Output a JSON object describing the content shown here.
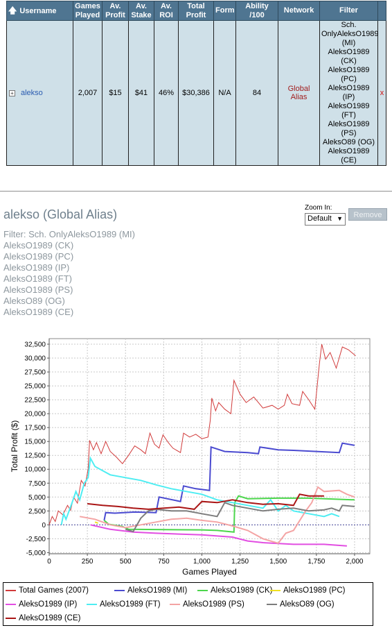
{
  "table": {
    "headers": {
      "username": "Username",
      "games_played": "Games Played",
      "av_profit": "Av. Profit",
      "av_stake": "Av. Stake",
      "av_roi": "Av. ROI",
      "total_profit": "Total Profit",
      "form": "Form",
      "ability": "Ability /100",
      "network": "Network",
      "filter": "Filter"
    },
    "sort_arrow": "🡅",
    "row": {
      "expand": "+",
      "username": "alekso",
      "games_played": "2,007",
      "av_profit": "$15",
      "av_stake": "$41",
      "av_roi": "46%",
      "total_profit": "$30,386",
      "form": "N/A",
      "ability": "84",
      "network": "Global Alias",
      "filter_lines": [
        "Sch.",
        "OnlyAleksO1989",
        "(MI)",
        "AleksO1989",
        "(CK)",
        "AleksO1989",
        "(PC)",
        "AleksO1989 (IP)",
        "AleksO1989",
        "(FT)",
        "AleksO1989",
        "(PS)",
        "AleksO89 (OG)",
        "AleksO1989",
        "(CE)"
      ],
      "remove": "x"
    }
  },
  "profile": {
    "title": "alekso (Global Alias)",
    "filter_lines": [
      "Filter: Sch. OnlyAleksO1989 (MI)",
      "AleksO1989 (CK)",
      "AleksO1989 (PC)",
      "AleksO1989 (IP)",
      "AleksO1989 (FT)",
      "AleksO1989 (PS)",
      "AleksO89 (OG)",
      "AleksO1989 (CE)"
    ],
    "zoom_label": "Zoom In:",
    "zoom_value": "Default",
    "remove_label": "Remove"
  },
  "chart_data": {
    "type": "line",
    "xlabel": "Games Played",
    "ylabel": "Total Profit ($)",
    "xlim": [
      0,
      2100
    ],
    "ylim": [
      -5200,
      33500
    ],
    "xticks": [
      0,
      250,
      500,
      750,
      1000,
      1250,
      1500,
      1750,
      2000
    ],
    "xtick_labels": [
      "0",
      "250",
      "500",
      "750",
      "1,000",
      "1,250",
      "1,500",
      "1,750",
      "2,000"
    ],
    "yticks": [
      -5000,
      -2500,
      0,
      2500,
      5000,
      7500,
      10000,
      12500,
      15000,
      17500,
      20000,
      22500,
      25000,
      27500,
      30000,
      32500
    ],
    "ytick_labels": [
      "-5,000",
      "-2,500",
      "0",
      "2,500",
      "5,000",
      "7,500",
      "10,000",
      "12,500",
      "15,000",
      "17,500",
      "20,000",
      "22,500",
      "25,000",
      "27,500",
      "30,000",
      "32,500"
    ],
    "grid": true,
    "legend_position": "bottom",
    "series": [
      {
        "name": "Total Games (2007)",
        "color": "#d13a3a",
        "points": [
          [
            0,
            0
          ],
          [
            20,
            1500
          ],
          [
            40,
            600
          ],
          [
            60,
            2500
          ],
          [
            90,
            1800
          ],
          [
            120,
            3500
          ],
          [
            140,
            2600
          ],
          [
            160,
            5000
          ],
          [
            185,
            3900
          ],
          [
            210,
            8000
          ],
          [
            235,
            7000
          ],
          [
            255,
            10000
          ],
          [
            265,
            15200
          ],
          [
            290,
            13500
          ],
          [
            310,
            14800
          ],
          [
            340,
            12800
          ],
          [
            370,
            15000
          ],
          [
            400,
            13200
          ],
          [
            440,
            12200
          ],
          [
            480,
            11000
          ],
          [
            520,
            12500
          ],
          [
            560,
            14200
          ],
          [
            600,
            13500
          ],
          [
            630,
            12800
          ],
          [
            660,
            16500
          ],
          [
            690,
            14500
          ],
          [
            720,
            13800
          ],
          [
            745,
            16200
          ],
          [
            780,
            14800
          ],
          [
            810,
            13800
          ],
          [
            860,
            13000
          ],
          [
            880,
            16500
          ],
          [
            920,
            15800
          ],
          [
            960,
            16300
          ],
          [
            1000,
            15500
          ],
          [
            1040,
            15800
          ],
          [
            1055,
            18800
          ],
          [
            1065,
            22800
          ],
          [
            1090,
            20500
          ],
          [
            1110,
            22000
          ],
          [
            1150,
            20800
          ],
          [
            1190,
            20000
          ],
          [
            1210,
            26000
          ],
          [
            1250,
            23500
          ],
          [
            1290,
            22000
          ],
          [
            1340,
            23000
          ],
          [
            1400,
            21000
          ],
          [
            1460,
            21500
          ],
          [
            1500,
            20800
          ],
          [
            1540,
            21500
          ],
          [
            1560,
            23500
          ],
          [
            1590,
            21800
          ],
          [
            1640,
            21500
          ],
          [
            1660,
            24000
          ],
          [
            1700,
            22500
          ],
          [
            1740,
            20800
          ],
          [
            1770,
            29000
          ],
          [
            1785,
            32500
          ],
          [
            1810,
            29800
          ],
          [
            1840,
            31000
          ],
          [
            1880,
            28200
          ],
          [
            1920,
            32000
          ],
          [
            1960,
            31500
          ],
          [
            2007,
            30400
          ]
        ]
      },
      {
        "name": "AleksO1989 (MI)",
        "color": "#4a4ad0",
        "points": [
          [
            360,
            800
          ],
          [
            370,
            2200
          ],
          [
            430,
            2100
          ],
          [
            560,
            2300
          ],
          [
            700,
            2200
          ],
          [
            720,
            5000
          ],
          [
            860,
            4200
          ],
          [
            880,
            7000
          ],
          [
            960,
            6500
          ],
          [
            1050,
            6200
          ],
          [
            1060,
            14000
          ],
          [
            1150,
            13200
          ],
          [
            1300,
            13000
          ],
          [
            1370,
            12800
          ],
          [
            1380,
            14000
          ],
          [
            1500,
            13500
          ],
          [
            1600,
            13400
          ],
          [
            1900,
            13000
          ],
          [
            1920,
            14700
          ],
          [
            2000,
            14300
          ]
        ]
      },
      {
        "name": "AleksO1989 (CK)",
        "color": "#4cd64c",
        "points": [
          [
            360,
            800
          ],
          [
            390,
            100
          ],
          [
            480,
            -300
          ],
          [
            520,
            -800
          ],
          [
            1000,
            -900
          ],
          [
            1100,
            -1000
          ],
          [
            1210,
            -1300
          ],
          [
            1215,
            4000
          ],
          [
            1240,
            5200
          ],
          [
            1300,
            4700
          ],
          [
            1500,
            4800
          ],
          [
            1700,
            4800
          ],
          [
            2000,
            4500
          ]
        ]
      },
      {
        "name": "AleksO1989 (PC)",
        "color": "#f0e020",
        "points": [
          [
            300,
            500
          ],
          [
            320,
            300
          ]
        ]
      },
      {
        "name": "AleksO1989 (IP)",
        "color": "#e24de2",
        "points": [
          [
            270,
            0
          ],
          [
            400,
            -800
          ],
          [
            550,
            -1300
          ],
          [
            700,
            -1500
          ],
          [
            1000,
            -1800
          ],
          [
            1200,
            -2200
          ],
          [
            1300,
            -2900
          ],
          [
            1400,
            -3200
          ],
          [
            1600,
            -3500
          ],
          [
            1800,
            -3500
          ],
          [
            1950,
            -3800
          ]
        ]
      },
      {
        "name": "AleksO1989 (FT)",
        "color": "#4dedf2",
        "points": [
          [
            80,
            0
          ],
          [
            95,
            2000
          ],
          [
            110,
            1000
          ],
          [
            150,
            4000
          ],
          [
            175,
            6000
          ],
          [
            200,
            4500
          ],
          [
            230,
            7500
          ],
          [
            255,
            8500
          ],
          [
            270,
            12000
          ],
          [
            300,
            10500
          ],
          [
            400,
            9000
          ],
          [
            500,
            8500
          ],
          [
            600,
            8000
          ],
          [
            700,
            7200
          ],
          [
            800,
            6500
          ],
          [
            900,
            6000
          ],
          [
            1000,
            5500
          ],
          [
            1100,
            4500
          ],
          [
            1200,
            4000
          ],
          [
            1300,
            3500
          ],
          [
            1400,
            3000
          ],
          [
            1450,
            4500
          ],
          [
            1500,
            2500
          ],
          [
            1550,
            3500
          ],
          [
            1600,
            2500
          ],
          [
            1700,
            2000
          ],
          [
            1800,
            1500
          ],
          [
            1850,
            2000
          ],
          [
            1900,
            1500
          ]
        ]
      },
      {
        "name": "AleksO1989 (PS)",
        "color": "#f4a4a4",
        "points": [
          [
            200,
            1500
          ],
          [
            300,
            1000
          ],
          [
            400,
            0
          ],
          [
            500,
            -500
          ],
          [
            600,
            0
          ],
          [
            700,
            500
          ],
          [
            800,
            1000
          ],
          [
            900,
            1200
          ],
          [
            1000,
            800
          ],
          [
            1100,
            500
          ],
          [
            1200,
            -200
          ],
          [
            1300,
            -1000
          ],
          [
            1400,
            -2500
          ],
          [
            1500,
            -3300
          ],
          [
            1550,
            -1500
          ],
          [
            1600,
            -1000
          ],
          [
            1680,
            2500
          ],
          [
            1720,
            4000
          ],
          [
            1760,
            6800
          ],
          [
            1800,
            6000
          ],
          [
            1900,
            6200
          ],
          [
            1950,
            5500
          ],
          [
            2000,
            5000
          ]
        ]
      },
      {
        "name": "AleksO89 (OG)",
        "color": "#7c7c7c",
        "points": [
          [
            500,
            -800
          ],
          [
            550,
            -1200
          ],
          [
            600,
            1200
          ],
          [
            650,
            2500
          ],
          [
            700,
            2800
          ],
          [
            800,
            2500
          ],
          [
            900,
            2500
          ],
          [
            1000,
            2000
          ],
          [
            1100,
            1500
          ],
          [
            1150,
            4000
          ],
          [
            1200,
            3500
          ],
          [
            1300,
            3000
          ],
          [
            1400,
            2500
          ],
          [
            1500,
            2800
          ],
          [
            1600,
            3000
          ],
          [
            1700,
            2500
          ],
          [
            1800,
            2700
          ],
          [
            1850,
            3000
          ],
          [
            1900,
            2500
          ],
          [
            1920,
            3500
          ],
          [
            2000,
            3300
          ]
        ]
      },
      {
        "name": "AleksO1989 (CE)",
        "color": "#aa1515",
        "points": [
          [
            250,
            3800
          ],
          [
            350,
            3500
          ],
          [
            450,
            3300
          ],
          [
            550,
            3000
          ],
          [
            650,
            2800
          ],
          [
            750,
            3000
          ],
          [
            850,
            3200
          ],
          [
            950,
            2800
          ],
          [
            1000,
            4200
          ],
          [
            1100,
            4000
          ],
          [
            1200,
            4500
          ],
          [
            1300,
            4000
          ],
          [
            1400,
            3700
          ],
          [
            1500,
            3800
          ],
          [
            1600,
            3500
          ],
          [
            1640,
            5500
          ],
          [
            1700,
            5200
          ],
          [
            1800,
            5200
          ]
        ]
      }
    ]
  }
}
